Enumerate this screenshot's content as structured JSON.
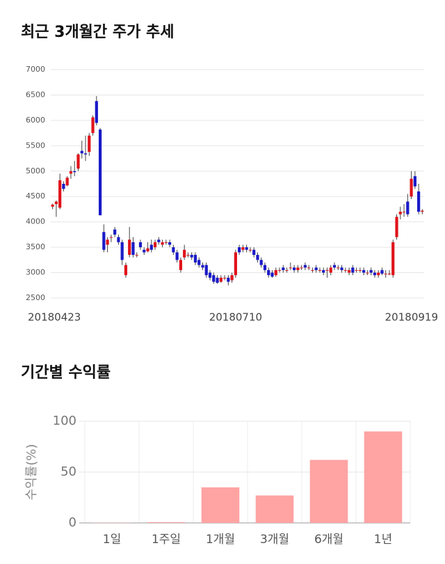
{
  "chart_data": [
    {
      "type": "candlestick",
      "title": "최근 3개월간 주가 추세",
      "x": [
        "20180423",
        null,
        null,
        null,
        null,
        null,
        null,
        null,
        null,
        null,
        null,
        null,
        null,
        null,
        null,
        null,
        null,
        null,
        null,
        null,
        null,
        null,
        null,
        null,
        null,
        null,
        null,
        null,
        null,
        null,
        null,
        null,
        null,
        null,
        null,
        null,
        null,
        null,
        null,
        null,
        null,
        null,
        null,
        null,
        null,
        null,
        null,
        null,
        null,
        null,
        "20180710",
        null,
        null,
        null,
        null,
        null,
        null,
        null,
        null,
        null,
        null,
        null,
        null,
        null,
        null,
        null,
        null,
        null,
        null,
        null,
        null,
        null,
        null,
        null,
        null,
        null,
        null,
        null,
        null,
        null,
        null,
        null,
        null,
        null,
        null,
        null,
        null,
        null,
        null,
        null,
        null,
        null,
        null,
        null,
        null,
        null,
        null,
        null,
        null,
        null,
        null,
        "20180919"
      ],
      "ohlc": [
        [
          4300,
          4360,
          4250,
          4340
        ],
        [
          4350,
          4420,
          4100,
          4400
        ],
        [
          4280,
          4950,
          4250,
          4820
        ],
        [
          4750,
          4800,
          4600,
          4650
        ],
        [
          4720,
          4900,
          4700,
          4870
        ],
        [
          4950,
          5100,
          4850,
          5000
        ],
        [
          5000,
          5200,
          4900,
          4980
        ],
        [
          5050,
          5350,
          5000,
          5330
        ],
        [
          5400,
          5600,
          5250,
          5350
        ],
        [
          5350,
          5700,
          5200,
          5330
        ],
        [
          5380,
          5750,
          5300,
          5700
        ],
        [
          5750,
          6100,
          5700,
          6060
        ],
        [
          6380,
          6480,
          5900,
          5950
        ],
        [
          5820,
          5850,
          4130,
          4130
        ],
        [
          3800,
          3950,
          3400,
          3450
        ],
        [
          3550,
          3700,
          3400,
          3650
        ],
        [
          3700,
          3750,
          3600,
          3700
        ],
        [
          3850,
          3900,
          3700,
          3750
        ],
        [
          3700,
          3750,
          3550,
          3600
        ],
        [
          3600,
          3650,
          3150,
          3250
        ],
        [
          2950,
          3200,
          2900,
          3150
        ],
        [
          3350,
          3900,
          3300,
          3650
        ],
        [
          3600,
          3700,
          3300,
          3350
        ],
        [
          3350,
          3400,
          3300,
          3350
        ],
        [
          3600,
          3650,
          3450,
          3500
        ],
        [
          3450,
          3500,
          3350,
          3400
        ],
        [
          3420,
          3600,
          3400,
          3480
        ],
        [
          3550,
          3650,
          3400,
          3450
        ],
        [
          3500,
          3650,
          3450,
          3600
        ],
        [
          3650,
          3700,
          3550,
          3600
        ],
        [
          3550,
          3650,
          3500,
          3600
        ],
        [
          3600,
          3650,
          3550,
          3600
        ],
        [
          3600,
          3650,
          3500,
          3550
        ],
        [
          3500,
          3550,
          3350,
          3400
        ],
        [
          3400,
          3450,
          3200,
          3250
        ],
        [
          3050,
          3300,
          3000,
          3250
        ],
        [
          3300,
          3550,
          3250,
          3450
        ],
        [
          3350,
          3400,
          3300,
          3350
        ],
        [
          3350,
          3400,
          3250,
          3300
        ],
        [
          3350,
          3400,
          3150,
          3200
        ],
        [
          3250,
          3300,
          3100,
          3150
        ],
        [
          3150,
          3200,
          3050,
          3100
        ],
        [
          3150,
          3200,
          2900,
          2950
        ],
        [
          3000,
          3050,
          2850,
          2900
        ],
        [
          2950,
          3000,
          2780,
          2820
        ],
        [
          2900,
          2950,
          2780,
          2800
        ],
        [
          2820,
          2950,
          2800,
          2900
        ],
        [
          2900,
          2950,
          2850,
          2900
        ],
        [
          2900,
          2950,
          2750,
          2820
        ],
        [
          2850,
          3000,
          2800,
          2950
        ],
        [
          2950,
          3450,
          2900,
          3400
        ],
        [
          3500,
          3550,
          3350,
          3400
        ],
        [
          3450,
          3550,
          3400,
          3500
        ],
        [
          3500,
          3550,
          3400,
          3450
        ],
        [
          3450,
          3500,
          3400,
          3450
        ],
        [
          3450,
          3500,
          3300,
          3350
        ],
        [
          3350,
          3400,
          3200,
          3250
        ],
        [
          3250,
          3300,
          3100,
          3150
        ],
        [
          3150,
          3200,
          3000,
          3050
        ],
        [
          3050,
          3100,
          2900,
          2950
        ],
        [
          3000,
          3050,
          2900,
          2920
        ],
        [
          2950,
          3100,
          2920,
          3050
        ],
        [
          3050,
          3100,
          3000,
          3050
        ],
        [
          3100,
          3150,
          3000,
          3050
        ],
        [
          3050,
          3100,
          3000,
          3050
        ],
        [
          3100,
          3200,
          3050,
          3100
        ],
        [
          3100,
          3150,
          3000,
          3050
        ],
        [
          3050,
          3150,
          3000,
          3100
        ],
        [
          3100,
          3150,
          3050,
          3100
        ],
        [
          3150,
          3200,
          3050,
          3100
        ],
        [
          3100,
          3150,
          3050,
          3100
        ],
        [
          3050,
          3100,
          3000,
          3050
        ],
        [
          3100,
          3150,
          3000,
          3050
        ],
        [
          3050,
          3100,
          3000,
          3050
        ],
        [
          3050,
          3100,
          2950,
          3000
        ],
        [
          3050,
          3100,
          2900,
          3050
        ],
        [
          3000,
          3150,
          2950,
          3100
        ],
        [
          3150,
          3200,
          3050,
          3100
        ],
        [
          3100,
          3150,
          3050,
          3100
        ],
        [
          3100,
          3150,
          3000,
          3050
        ],
        [
          3050,
          3100,
          3000,
          3050
        ],
        [
          3000,
          3100,
          2950,
          3050
        ],
        [
          3100,
          3150,
          2950,
          3000
        ],
        [
          3050,
          3100,
          3000,
          3050
        ],
        [
          3050,
          3100,
          3000,
          3050
        ],
        [
          3050,
          3100,
          2950,
          3000
        ],
        [
          3000,
          3050,
          2950,
          3000
        ],
        [
          3050,
          3100,
          2950,
          3000
        ],
        [
          3000,
          3050,
          2900,
          2950
        ],
        [
          2950,
          3050,
          2900,
          3000
        ],
        [
          3050,
          3100,
          2950,
          2980
        ],
        [
          2980,
          3050,
          2900,
          2980
        ],
        [
          2980,
          3050,
          2950,
          2980
        ],
        [
          2950,
          3650,
          2900,
          3600
        ],
        [
          3700,
          4150,
          3650,
          4100
        ],
        [
          4150,
          4300,
          4050,
          4200
        ],
        [
          4200,
          4350,
          4100,
          4200
        ],
        [
          4400,
          4550,
          4100,
          4150
        ],
        [
          4500,
          5000,
          4450,
          4850
        ],
        [
          4900,
          5000,
          4650,
          4700
        ],
        [
          4600,
          4750,
          4150,
          4200
        ],
        [
          4200,
          4250,
          4150,
          4220
        ]
      ],
      "up_color": "#e0141b",
      "down_color": "#1a1ac8",
      "ylim": [
        2500,
        7000
      ],
      "yticks": [
        2500,
        3000,
        3500,
        4000,
        4500,
        5000,
        5500,
        6000,
        6500,
        7000
      ],
      "grid": true
    },
    {
      "type": "bar",
      "title": "기간별 수익률",
      "ylabel": "수익률(%)",
      "categories": [
        "1일",
        "1주일",
        "1개월",
        "3개월",
        "6개월",
        "1년"
      ],
      "values": [
        0.2,
        0.8,
        35,
        27,
        62,
        90
      ],
      "color": "#ffa3a3",
      "ylim": [
        0,
        100
      ],
      "yticks": [
        0,
        50,
        100
      ],
      "grid": true
    }
  ]
}
